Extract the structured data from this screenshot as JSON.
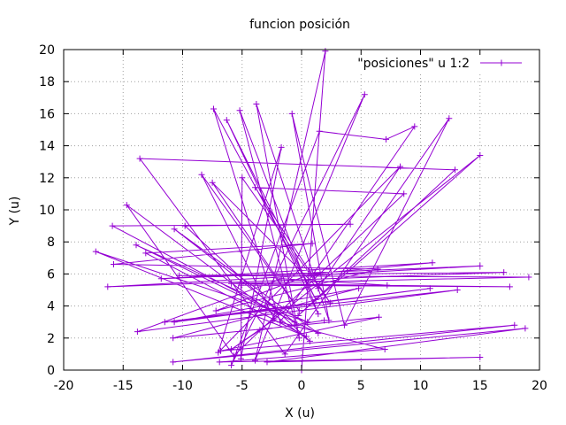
{
  "chart_data": {
    "type": "line",
    "title": "funcion posición",
    "xlabel": "X (u)",
    "ylabel": "Y (u)",
    "xlim": [
      -20,
      20
    ],
    "ylim": [
      0,
      20
    ],
    "xticks": [
      -20,
      -15,
      -10,
      -5,
      0,
      5,
      10,
      15,
      20
    ],
    "yticks": [
      0,
      2,
      4,
      6,
      8,
      10,
      12,
      14,
      16,
      18,
      20
    ],
    "grid": true,
    "legend_position": "top-right",
    "series": [
      {
        "name": "\"posiciones\" u 1:2",
        "color": "#9400d3",
        "marker": "plus",
        "points": [
          [
            0.0,
            0.0
          ],
          [
            2.0,
            19.9
          ],
          [
            -3.9,
            0.6
          ],
          [
            5.3,
            17.2
          ],
          [
            -5.9,
            0.3
          ],
          [
            1.5,
            14.9
          ],
          [
            7.1,
            14.4
          ],
          [
            9.5,
            15.2
          ],
          [
            -1.8,
            3.0
          ],
          [
            -7.4,
            16.3
          ],
          [
            1.2,
            4.4
          ],
          [
            -6.3,
            15.6
          ],
          [
            1.4,
            3.5
          ],
          [
            -5.2,
            16.2
          ],
          [
            -0.2,
            2.0
          ],
          [
            -3.8,
            16.6
          ],
          [
            2.3,
            3.1
          ],
          [
            -0.8,
            16.0
          ],
          [
            3.6,
            2.8
          ],
          [
            12.4,
            15.7
          ],
          [
            -1.4,
            1.0
          ],
          [
            -13.6,
            13.2
          ],
          [
            12.9,
            12.5
          ],
          [
            -0.3,
            3.4
          ],
          [
            15.0,
            13.4
          ],
          [
            -2.3,
            3.2
          ],
          [
            -8.4,
            12.2
          ],
          [
            -0.2,
            3.7
          ],
          [
            -7.5,
            11.7
          ],
          [
            1.4,
            5.1
          ],
          [
            8.3,
            12.7
          ],
          [
            -7.0,
            1.1
          ],
          [
            -1.7,
            13.9
          ],
          [
            -5.1,
            0.7
          ],
          [
            -5.0,
            12.0
          ],
          [
            2.4,
            4.2
          ],
          [
            -3.9,
            11.4
          ],
          [
            8.6,
            11.0
          ],
          [
            -5.7,
            0.9
          ],
          [
            -14.7,
            10.3
          ],
          [
            0.7,
            1.8
          ],
          [
            -9.8,
            9.0
          ],
          [
            4.1,
            9.1
          ],
          [
            -15.9,
            9.0
          ],
          [
            -0.6,
            3.0
          ],
          [
            -10.7,
            8.8
          ],
          [
            1.4,
            2.3
          ],
          [
            -13.9,
            7.8
          ],
          [
            0.5,
            3.0
          ],
          [
            -17.3,
            7.4
          ],
          [
            0.4,
            2.1
          ],
          [
            -13.1,
            7.3
          ],
          [
            0.9,
            7.9
          ],
          [
            -15.8,
            6.6
          ],
          [
            6.4,
            6.3
          ],
          [
            -7.2,
            3.7
          ],
          [
            0.8,
            6.0
          ],
          [
            11.0,
            6.7
          ],
          [
            -11.8,
            5.7
          ],
          [
            15.0,
            6.5
          ],
          [
            -16.3,
            5.2
          ],
          [
            17.0,
            6.1
          ],
          [
            -10.3,
            5.9
          ],
          [
            19.1,
            5.8
          ],
          [
            -5.9,
            5.4
          ],
          [
            17.5,
            5.2
          ],
          [
            -5.1,
            5.3
          ],
          [
            7.2,
            5.3
          ],
          [
            -1.7,
            5.7
          ],
          [
            -13.8,
            2.4
          ],
          [
            13.1,
            5.0
          ],
          [
            -11.5,
            3.0
          ],
          [
            10.8,
            5.1
          ],
          [
            -10.7,
            3.0
          ],
          [
            4.8,
            5.1
          ],
          [
            -10.8,
            2.0
          ],
          [
            6.5,
            3.3
          ],
          [
            -6.8,
            1.2
          ],
          [
            17.9,
            2.8
          ],
          [
            -10.8,
            0.5
          ],
          [
            18.8,
            2.6
          ],
          [
            -2.9,
            0.5
          ],
          [
            15.0,
            0.8
          ],
          [
            -6.9,
            0.5
          ],
          [
            7.0,
            1.3
          ],
          [
            -2.4,
            3.1
          ],
          [
            -5.9,
            1.3
          ],
          [
            -3.5,
            2.5
          ],
          [
            1.9,
            3.1
          ]
        ]
      }
    ]
  }
}
